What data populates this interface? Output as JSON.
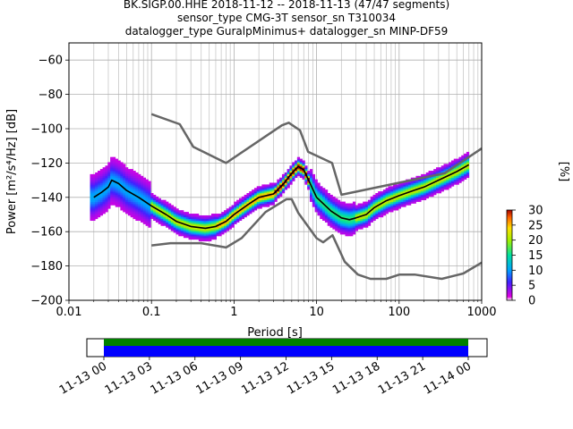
{
  "titles": [
    "BK.SIGP.00.HHE   2018-11-12 -- 2018-11-13  (47/47 segments)",
    "sensor_type CMG-3T sensor_sn T310034",
    "datalogger_type GuralpMinimus+ datalogger_sn MINP-DF59"
  ],
  "chart_data": {
    "type": "heatmap",
    "xlabel": "Period [s]",
    "ylabel": "Power [m²/s⁴/Hz] [dB]",
    "x_scale": "log",
    "xlim": [
      0.01,
      1000
    ],
    "ylim": [
      -200,
      -50
    ],
    "x_ticks": [
      0.01,
      0.1,
      1,
      10,
      100,
      1000
    ],
    "x_tick_labels": [
      "0.01",
      "0.1",
      "1",
      "10",
      "100",
      "1000"
    ],
    "y_ticks": [
      -200,
      -180,
      -160,
      -140,
      -120,
      -100,
      -80,
      -60
    ],
    "y_tick_labels": [
      "−200",
      "−180",
      "−160",
      "−140",
      "−120",
      "−100",
      "−80",
      "−60"
    ],
    "grid": true,
    "colorbar": {
      "label": "[%]",
      "min": 0,
      "max": 30,
      "ticks": [
        0,
        5,
        10,
        15,
        20,
        25,
        30
      ],
      "tick_labels": [
        "0",
        "5",
        "10",
        "15",
        "20",
        "25",
        "30"
      ]
    },
    "nhnm": {
      "name": "",
      "x": [
        0.1,
        0.22,
        0.32,
        0.8,
        3.8,
        4.6,
        6.3,
        7.9,
        15.4,
        20,
        354.8,
        1000
      ],
      "y": [
        -91.5,
        -97.4,
        -110.5,
        -120,
        -98,
        -96.5,
        -101,
        -113.5,
        -120,
        -138.5,
        -126,
        -111.5
      ]
    },
    "nlnm": {
      "name": "",
      "x": [
        0.1,
        0.17,
        0.4,
        0.8,
        1.24,
        2.4,
        4.3,
        5,
        6,
        10,
        12,
        15.6,
        21.9,
        31.6,
        45,
        70,
        101,
        154,
        328,
        600,
        1000
      ],
      "y": [
        -168,
        -166.7,
        -166.7,
        -169.2,
        -163.7,
        -148.6,
        -141.1,
        -141.1,
        -149,
        -163.8,
        -166.2,
        -162.1,
        -177.5,
        -185,
        -187.5,
        -187.5,
        -185,
        -185,
        -187.5,
        -184.4,
        -178
      ]
    },
    "median": {
      "name": "",
      "x": [
        0.02,
        0.025,
        0.03,
        0.033,
        0.04,
        0.05,
        0.07,
        0.1,
        0.15,
        0.2,
        0.3,
        0.45,
        0.6,
        0.8,
        1,
        1.5,
        2,
        3,
        4,
        5,
        6,
        7,
        8,
        10,
        15,
        20,
        25,
        30,
        40,
        50,
        70,
        100,
        150,
        200,
        300,
        500,
        700
      ],
      "y": [
        -140,
        -137,
        -134,
        -130,
        -132,
        -136,
        -140,
        -145,
        -150,
        -154,
        -157,
        -158,
        -157,
        -154,
        -150,
        -144,
        -140,
        -138,
        -132,
        -126,
        -122,
        -124,
        -130,
        -140,
        -148,
        -152,
        -153,
        -152,
        -150,
        -146,
        -142,
        -139,
        -136,
        -134,
        -130,
        -125,
        -121
      ]
    },
    "segment_bar": {
      "x_ticks": [
        "11-13 00",
        "11-13 03",
        "11-13 06",
        "11-13 09",
        "11-13 12",
        "11-13 15",
        "11-13 18",
        "11-13 21",
        "11-14 00"
      ],
      "colors": {
        "coverage": "#008000",
        "processed": "#0000ff"
      }
    }
  }
}
